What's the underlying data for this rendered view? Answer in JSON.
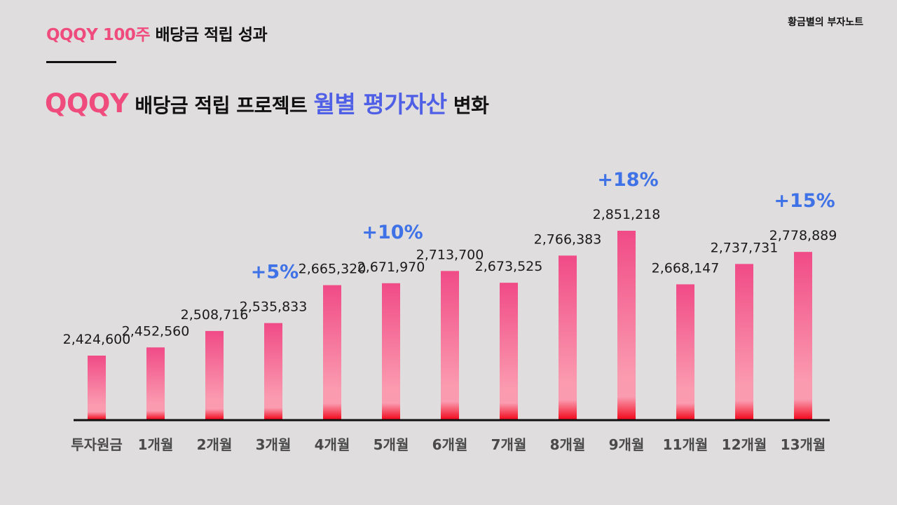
{
  "header": {
    "title_accent": "QQQY 100주",
    "title_rest": "배당금 적립 성과",
    "brand": "황금별의 부자노트"
  },
  "main_title": {
    "part1": "QQQY",
    "part2": "배당금 적립 프로젝트",
    "part3": "월별 평가자산",
    "part4": "변화"
  },
  "colors": {
    "accent_pink": "#ef4b7d",
    "accent_blue": "#4f5fe6",
    "annotation_blue": "#3f72e6",
    "bar_top": "#f04b86",
    "bar_mid": "#fb9bb0",
    "bar_bottom": "#f20a1e"
  },
  "chart_data": {
    "type": "bar",
    "categories": [
      "투자원금",
      "1개월",
      "2개월",
      "3개월",
      "4개월",
      "5개월",
      "6개월",
      "7개월",
      "8개월",
      "9개월",
      "11개월",
      "12개월",
      "13개월"
    ],
    "values": [
      2424600,
      2452560,
      2508716,
      2535833,
      2665320,
      2671970,
      2713700,
      2673525,
      2766383,
      2851218,
      2668147,
      2737731,
      2778889
    ],
    "value_labels": [
      "2,424,600",
      "2,452,560",
      "2,508,716",
      "2,535,833",
      "2,665,320",
      "2,671,970",
      "2,713,700",
      "2,673,525",
      "2,766,383",
      "2,851,218",
      "2,668,147",
      "2,737,731",
      "2,778,889"
    ],
    "annotations": [
      {
        "category": "3개월",
        "text": "+5%"
      },
      {
        "category": "5개월",
        "text": "+10%"
      },
      {
        "category": "9개월",
        "text": "+18%"
      },
      {
        "category": "13개월",
        "text": "+15%"
      }
    ],
    "grid": false
  }
}
